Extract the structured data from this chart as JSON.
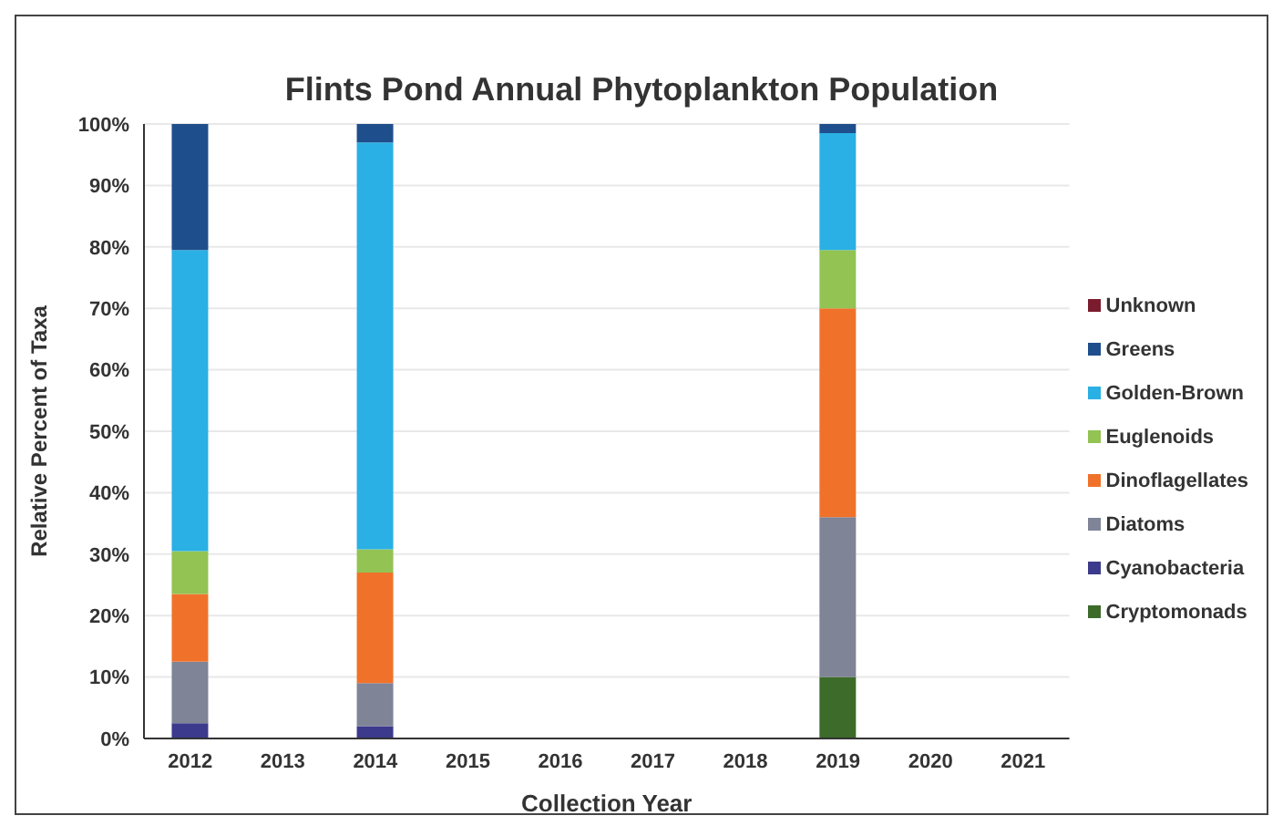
{
  "chart_data": {
    "type": "bar",
    "title": "Flints Pond Annual Phytoplankton Population",
    "xlabel": "Collection Year",
    "ylabel": "Relative Percent of Taxa",
    "categories": [
      "2012",
      "2013",
      "2014",
      "2015",
      "2016",
      "2017",
      "2018",
      "2019",
      "2020",
      "2021"
    ],
    "stacked": true,
    "grid": "y",
    "legend": "right",
    "ylim": [
      0,
      100
    ],
    "yticks": [
      {
        "value": 0,
        "label": "0%"
      },
      {
        "value": 10,
        "label": "10%"
      },
      {
        "value": 20,
        "label": "20%"
      },
      {
        "value": 30,
        "label": "30%"
      },
      {
        "value": 40,
        "label": "40%"
      },
      {
        "value": 50,
        "label": "50%"
      },
      {
        "value": 60,
        "label": "60%"
      },
      {
        "value": 70,
        "label": "70%"
      },
      {
        "value": 80,
        "label": "80%"
      },
      {
        "value": 90,
        "label": "90%"
      },
      {
        "value": 100,
        "label": "100%"
      }
    ],
    "series": [
      {
        "name": "Cryptomonads",
        "color": "#3c6b2a",
        "values": [
          0,
          null,
          0,
          null,
          null,
          null,
          null,
          10,
          null,
          null
        ]
      },
      {
        "name": "Cyanobacteria",
        "color": "#3b3a8c",
        "values": [
          2.5,
          null,
          2,
          null,
          null,
          null,
          null,
          0,
          null,
          null
        ]
      },
      {
        "name": "Diatoms",
        "color": "#7f8497",
        "values": [
          10,
          null,
          7,
          null,
          null,
          null,
          null,
          26,
          null,
          null
        ]
      },
      {
        "name": "Dinoflagellates",
        "color": "#f0722a",
        "values": [
          11,
          null,
          18,
          null,
          null,
          null,
          null,
          34,
          null,
          null
        ]
      },
      {
        "name": "Euglenoids",
        "color": "#92c353",
        "values": [
          7,
          null,
          3.8,
          null,
          null,
          null,
          null,
          9.5,
          null,
          null
        ]
      },
      {
        "name": "Golden-Brown",
        "color": "#2ab0e4",
        "values": [
          49,
          null,
          66.2,
          null,
          null,
          null,
          null,
          19,
          null,
          null
        ]
      },
      {
        "name": "Greens",
        "color": "#1f4e8c",
        "values": [
          20.5,
          null,
          3,
          null,
          null,
          null,
          null,
          1.5,
          null,
          null
        ]
      },
      {
        "name": "Unknown",
        "color": "#7b1c2e",
        "values": [
          0,
          null,
          0,
          null,
          null,
          null,
          null,
          0,
          null,
          null
        ]
      }
    ]
  }
}
